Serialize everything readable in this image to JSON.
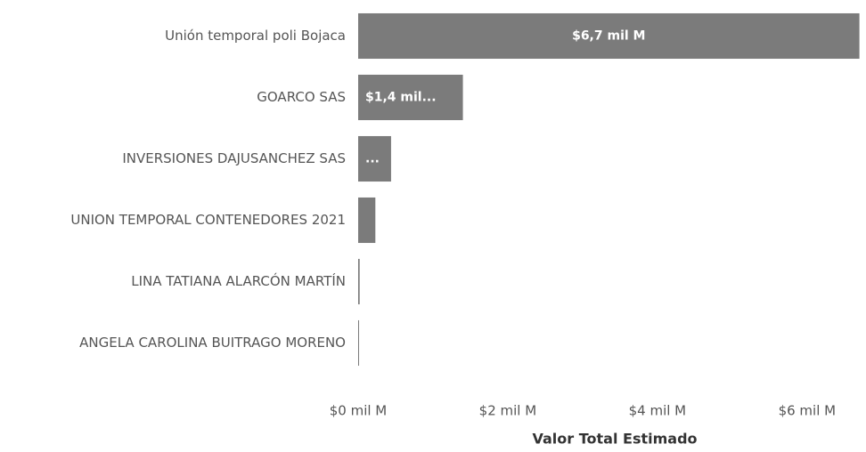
{
  "chart_data": {
    "type": "hbar",
    "categories": [
      "Unión temporal poli Bojaca",
      "GOARCO SAS",
      "INVERSIONES DAJUSANCHEZ SAS",
      "UNION TEMPORAL CONTENEDORES 2021",
      "LINA TATIANA ALARCÓN MARTÍN",
      "ANGELA CAROLINA BUITRAGO MORENO"
    ],
    "values": [
      6.7,
      1.4,
      0.44,
      0.23,
      0.02,
      0.01
    ],
    "value_labels": [
      "$6,7 mil M",
      "$1,4 mil...",
      "...",
      null,
      null,
      null
    ],
    "color": "#7b7b7b",
    "xlim": [
      0,
      6.8
    ],
    "xticks": [
      {
        "value": 0,
        "label": "$0 mil M"
      },
      {
        "value": 2,
        "label": "$2 mil M"
      },
      {
        "value": 4,
        "label": "$4 mil M"
      },
      {
        "value": 6,
        "label": "$6 mil M"
      }
    ],
    "xlabel": "Valor Total Estimado"
  }
}
